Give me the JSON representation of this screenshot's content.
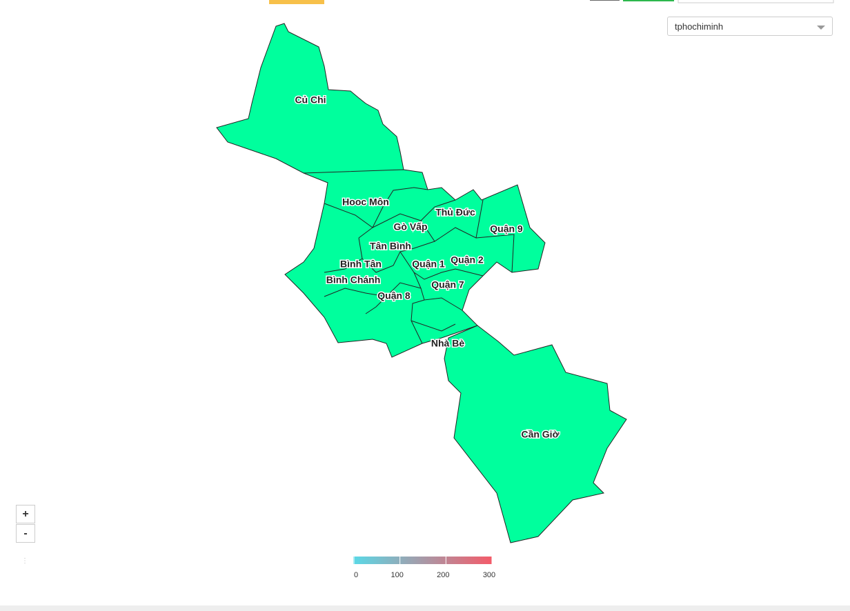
{
  "dropdown": {
    "selected": "tphochiminh"
  },
  "zoom": {
    "in": "+",
    "out": "-"
  },
  "map": {
    "districts": [
      "Củ Chi",
      "Hooc Môn",
      "Gò Vấp",
      "Thủ Đức",
      "Quận 9",
      "Tân Bình",
      "Bình Tân",
      "Quận 1",
      "Quận 2",
      "Bình Chánh",
      "Quận 7",
      "Quận 8",
      "Nhà Bè",
      "Cần Giờ"
    ],
    "fill": "#00ff9d"
  },
  "legend": {
    "range": [
      0,
      300
    ],
    "ticks": [
      0,
      100,
      200,
      300
    ],
    "colors": [
      "#5ad8e6",
      "#f45b69"
    ]
  }
}
